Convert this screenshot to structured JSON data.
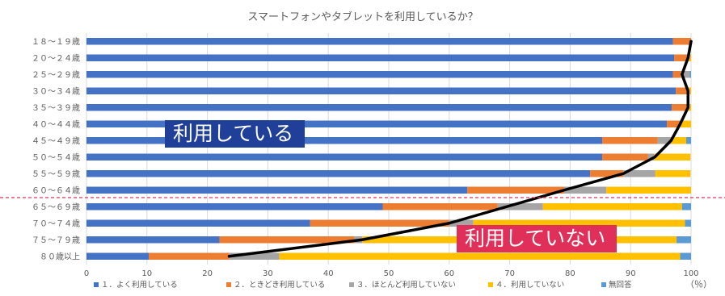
{
  "chart_data": {
    "type": "bar",
    "orientation": "horizontal",
    "stacked": true,
    "title": "スマートフォンやタブレットを利用しているか？",
    "categories": [
      "１８～１９歳",
      "２０～２４歳",
      "２５～２９歳",
      "３０～３４歳",
      "３５～３９歳",
      "４０～４４歳",
      "４５～４９歳",
      "５０～５４歳",
      "５５～５９歳",
      "６０～６４歳",
      "６５～６９歳",
      "７０～７４歳",
      "７５～７９歳",
      "８０歳以上"
    ],
    "series": [
      {
        "name": "１．よく利用している",
        "color": "#4472c4",
        "values": [
          97,
          97.2,
          97,
          97.5,
          96.8,
          96,
          85.3,
          85.3,
          83.3,
          63,
          49,
          37,
          22,
          10.3
        ]
      },
      {
        "name": "２．ときどき利用している",
        "color": "#ed7d31",
        "values": [
          3,
          2.3,
          1.3,
          2,
          2.7,
          2.2,
          9.2,
          7.6,
          5.5,
          16,
          19,
          23,
          22.3,
          13.3
        ]
      },
      {
        "name": "３．ほとんど利用していない",
        "color": "#a5a5a5",
        "values": [
          0,
          0,
          1.5,
          0,
          0,
          0,
          2.2,
          1,
          5.3,
          7,
          7.5,
          4,
          1.3,
          8.3
        ]
      },
      {
        "name": "４．利用していない",
        "color": "#ffc000",
        "values": [
          0,
          0.5,
          0,
          0.5,
          0.5,
          1.8,
          2.5,
          6,
          5.8,
          14,
          23,
          35,
          52,
          66.3
        ]
      },
      {
        "name": "無回答",
        "color": "#5b9bd5",
        "values": [
          0,
          0,
          0.2,
          0,
          0,
          0,
          0.8,
          0,
          0,
          0,
          1.5,
          1,
          2.4,
          1.8
        ]
      }
    ],
    "trend_line": {
      "color": "#000000",
      "values": [
        100,
        99.5,
        98.5,
        99.5,
        99.5,
        98.2,
        96.7,
        94,
        88.8,
        79,
        69.5,
        60,
        45.6,
        23.6
      ]
    },
    "xlim": [
      0,
      100
    ],
    "xticks": [
      0,
      10,
      20,
      30,
      40,
      50,
      60,
      70,
      80,
      90,
      100
    ],
    "x_unit": "（％）",
    "legend_position": "bottom",
    "divider": {
      "after_category": "６０～６４歳",
      "color": "#e0305a",
      "style": "dashed"
    },
    "annotations": {
      "using": "利用している",
      "not_using": "利用していない"
    }
  }
}
